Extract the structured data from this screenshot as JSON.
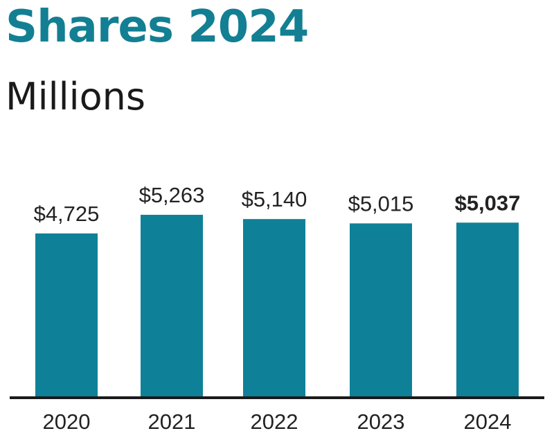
{
  "chart_data": {
    "type": "bar",
    "title": "Shares 2024",
    "subtitle": "Millions",
    "categories": [
      "2020",
      "2021",
      "2022",
      "2023",
      "2024"
    ],
    "values": [
      4725,
      5263,
      5140,
      5015,
      5037
    ],
    "value_labels": [
      "$4,725",
      "$5,263",
      "$5,140",
      "$5,015",
      "$5,037"
    ],
    "highlight_index": 4,
    "bar_color": "#0e8198",
    "axis_color": "#1a1a1a",
    "title_color": "#127f93",
    "ylim": [
      0,
      5263
    ],
    "grid": false,
    "legend": "none"
  }
}
